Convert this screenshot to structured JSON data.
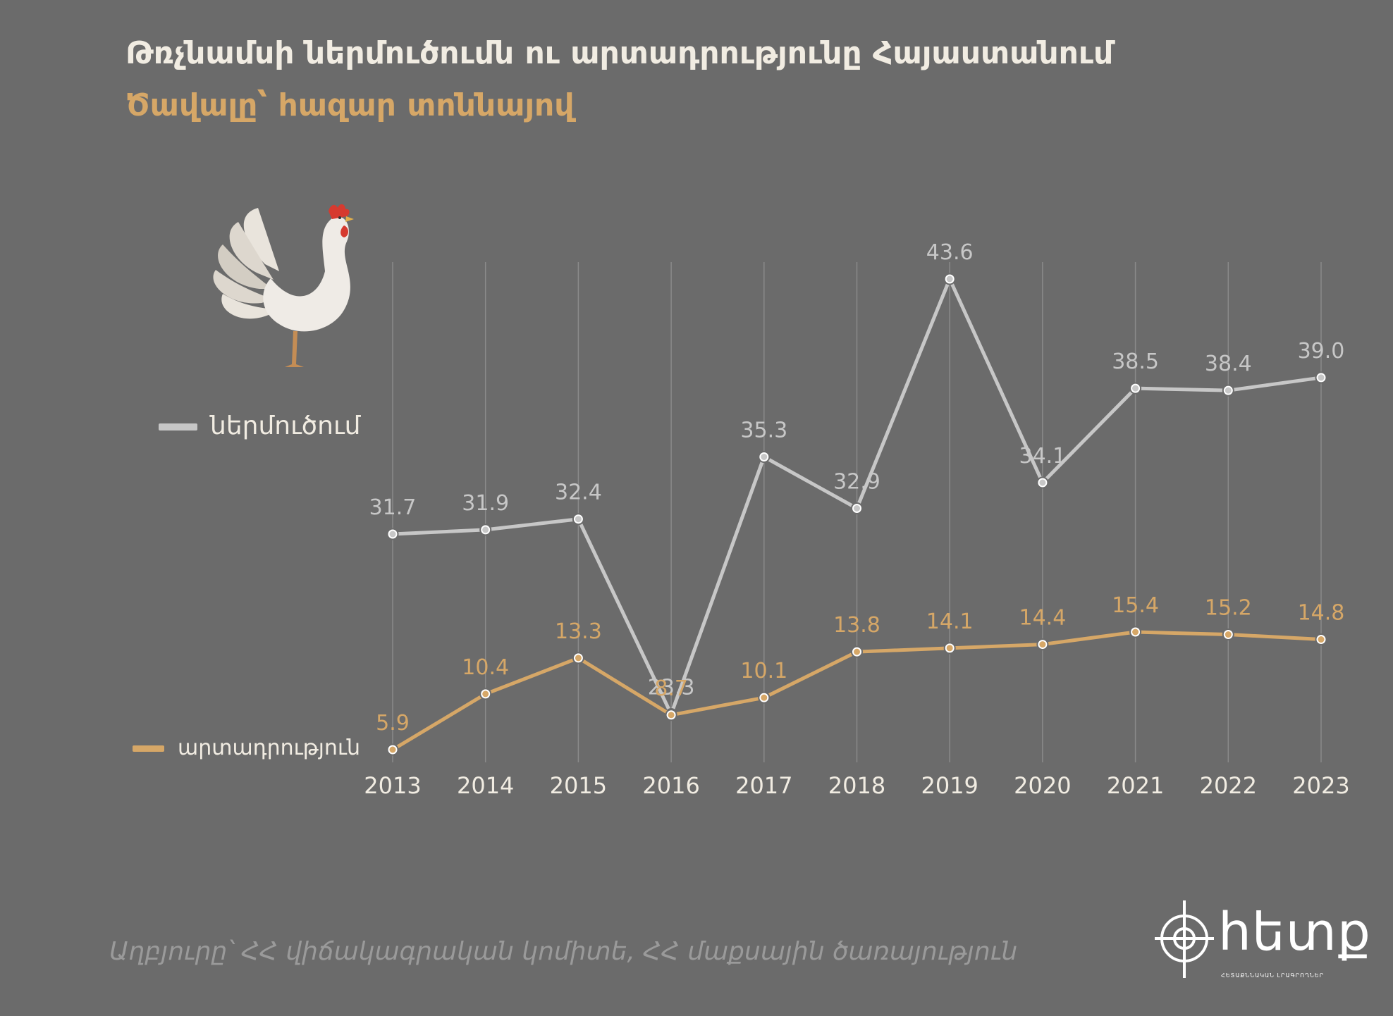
{
  "title": "Թռչնամսի ներմուծումն ու արտադրությունը Հայաստանում",
  "subtitle": "Ծավալը՝ հազար տոննայով",
  "source": "Աղբյուրը՝ ՀՀ վիճակագրական կոմիտե,  ՀՀ մաքսային ծառայություն",
  "logo": {
    "text": "hետք",
    "tagline": "ՀԵՏԱՔՆՆԱԿԱՆ ԼՐԱԳՐՈՂՆԵՐ"
  },
  "colors": {
    "background": "#6b6b6b",
    "import": "#c7c7c7",
    "production": "#d6a767",
    "grid": "#8a8a8a",
    "title": "#f1ece2"
  },
  "illustration": {
    "icon": "chicken-icon"
  },
  "chart_data": {
    "type": "line",
    "x": [
      "2013",
      "2014",
      "2015",
      "2016",
      "2017",
      "2018",
      "2019",
      "2020",
      "2021",
      "2022",
      "2023"
    ],
    "series": [
      {
        "name": "ներմուծում",
        "color": "#c7c7c7",
        "values": [
          31.7,
          31.9,
          32.4,
          23.3,
          35.3,
          32.9,
          43.6,
          34.1,
          38.5,
          38.4,
          39.0
        ],
        "labels": [
          "31.7",
          "31.9",
          "32.4",
          "23.3",
          "35.3",
          "32.9",
          "43.6",
          "34.1",
          "38.5",
          "38.4",
          "39.0"
        ]
      },
      {
        "name": "արտադրություն",
        "color": "#d6a767",
        "values": [
          5.9,
          10.4,
          13.3,
          8.7,
          10.1,
          13.8,
          14.1,
          14.4,
          15.4,
          15.2,
          14.8
        ],
        "labels": [
          "5.9",
          "10.4",
          "13.3",
          "8.7",
          "10.1",
          "13.8",
          "14.1",
          "14.4",
          "15.4",
          "15.2",
          "14.8"
        ]
      }
    ],
    "xlabel": "",
    "ylabel": "",
    "grid": "vertical",
    "legend": "left"
  }
}
